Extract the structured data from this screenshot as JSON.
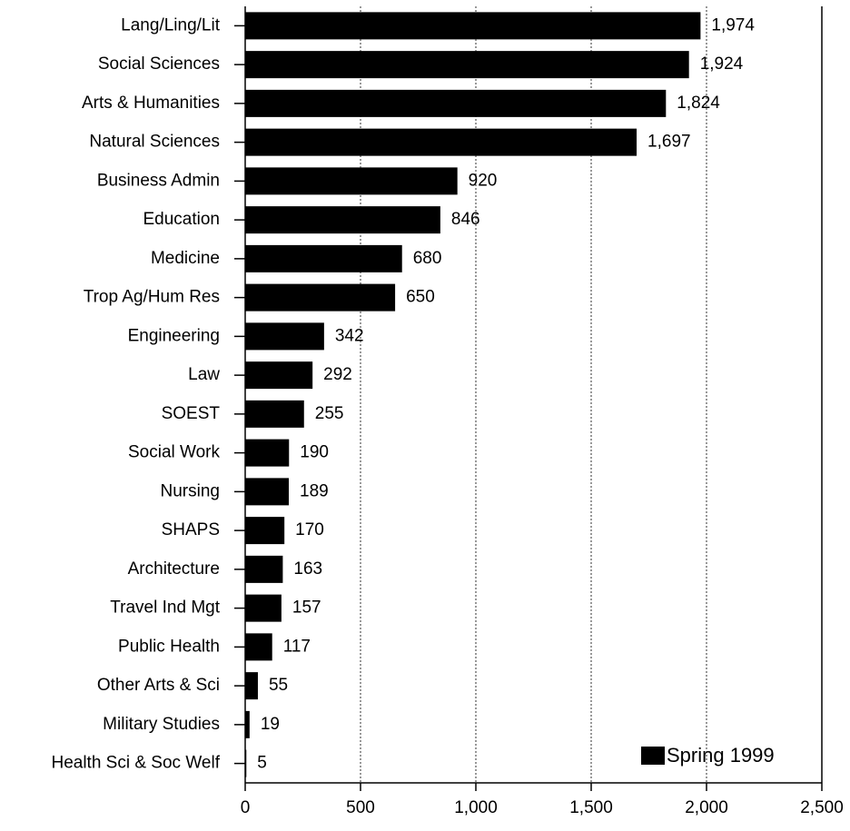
{
  "chart_data": {
    "type": "barh",
    "categories": [
      "Lang/Ling/Lit",
      "Social Sciences",
      "Arts & Humanities",
      "Natural Sciences",
      "Business Admin",
      "Education",
      "Medicine",
      "Trop Ag/Hum Res",
      "Engineering",
      "Law",
      "SOEST",
      "Social Work",
      "Nursing",
      "SHAPS",
      "Architecture",
      "Travel Ind Mgt",
      "Public Health",
      "Other Arts & Sci",
      "Military Studies",
      "Health Sci & Soc Welf"
    ],
    "series": [
      {
        "name": "Spring 1999",
        "color": "#000000",
        "values": [
          1974,
          1924,
          1824,
          1697,
          920,
          846,
          680,
          650,
          342,
          292,
          255,
          190,
          189,
          170,
          163,
          157,
          117,
          55,
          19,
          5
        ],
        "value_labels": [
          "1,974",
          "1,924",
          "1,824",
          "1,697",
          "920",
          "846",
          "680",
          "650",
          "342",
          "292",
          "255",
          "190",
          "189",
          "170",
          "163",
          "157",
          "117",
          "55",
          "19",
          "5"
        ]
      }
    ],
    "xlim": [
      0,
      2500
    ],
    "xticks": [
      0,
      500,
      {
        "value": 1000,
        "label": "1,000"
      },
      {
        "value": 1500,
        "label": "1,500"
      },
      {
        "value": 2000,
        "label": "2,000"
      },
      {
        "value": 2500,
        "label": "2,500"
      }
    ],
    "grid": true,
    "legend": "lower right"
  }
}
